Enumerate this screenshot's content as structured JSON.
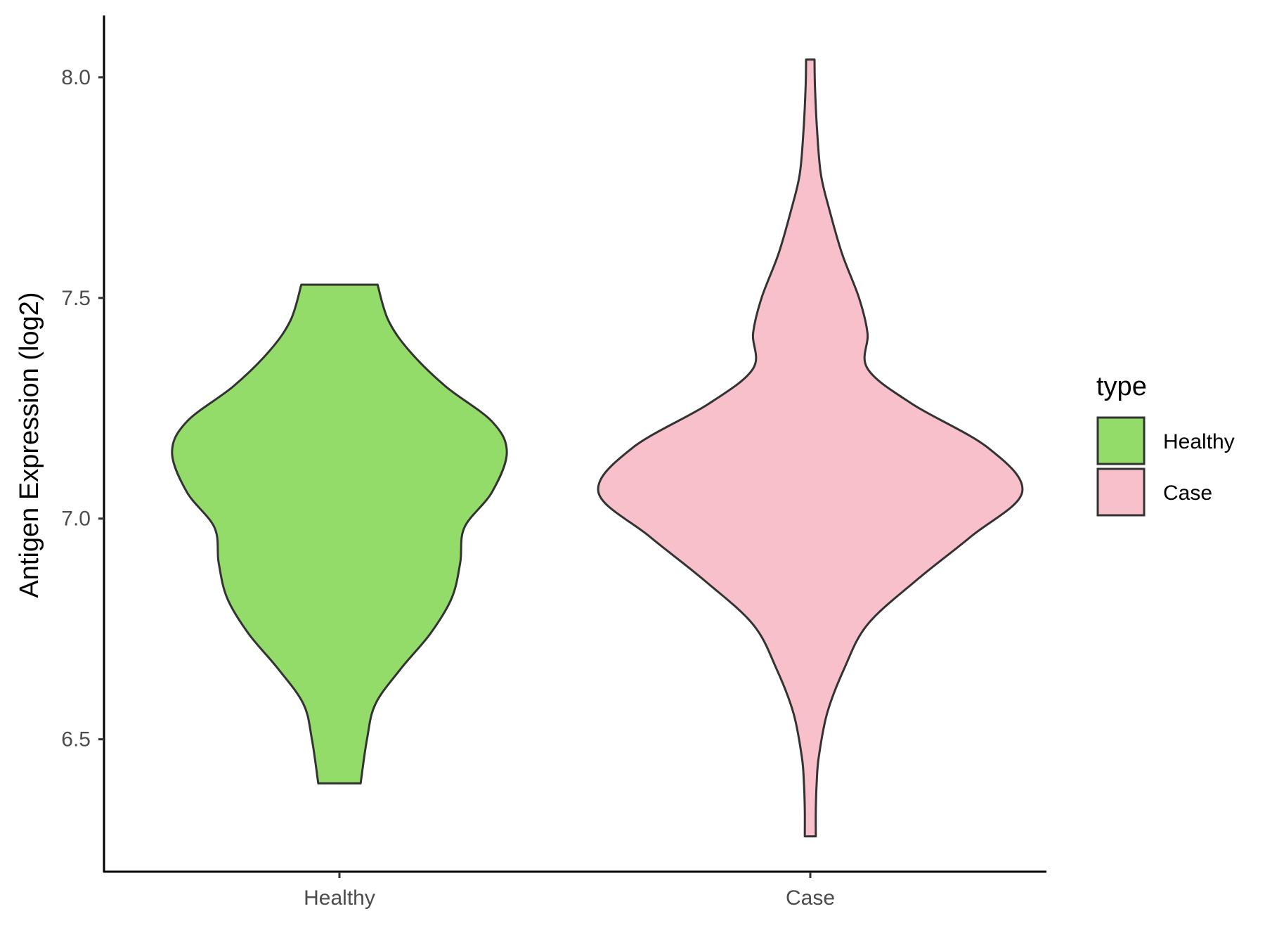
{
  "chart_data": {
    "type": "violin",
    "ylabel": "Antigen Expression (log2)",
    "xlabel": "",
    "categories": [
      "Healthy",
      "Case"
    ],
    "ylim": [
      6.2,
      8.14
    ],
    "yticks": [
      "6.5",
      "7.0",
      "7.5",
      "8.0"
    ],
    "grid": false,
    "legend": {
      "title": "type",
      "position": "right",
      "entries": [
        "Healthy",
        "Case"
      ]
    },
    "series": [
      {
        "category": "Healthy",
        "color": "#93DC6A",
        "y_min": 6.4,
        "y_max": 7.53,
        "density_profile": [
          [
            6.4,
            0.1
          ],
          [
            6.5,
            0.13
          ],
          [
            6.58,
            0.17
          ],
          [
            6.66,
            0.29
          ],
          [
            6.74,
            0.43
          ],
          [
            6.82,
            0.53
          ],
          [
            6.9,
            0.57
          ],
          [
            6.98,
            0.59
          ],
          [
            7.06,
            0.72
          ],
          [
            7.15,
            0.79
          ],
          [
            7.22,
            0.72
          ],
          [
            7.3,
            0.5
          ],
          [
            7.38,
            0.33
          ],
          [
            7.45,
            0.23
          ],
          [
            7.53,
            0.18
          ]
        ]
      },
      {
        "category": "Case",
        "color": "#F7C0CB",
        "y_min": 6.28,
        "y_max": 8.04,
        "density_profile": [
          [
            6.28,
            0.026
          ],
          [
            6.34,
            0.026
          ],
          [
            6.4,
            0.03
          ],
          [
            6.46,
            0.04
          ],
          [
            6.56,
            0.08
          ],
          [
            6.66,
            0.16
          ],
          [
            6.76,
            0.27
          ],
          [
            6.86,
            0.5
          ],
          [
            6.96,
            0.76
          ],
          [
            7.06,
            1.0
          ],
          [
            7.16,
            0.84
          ],
          [
            7.26,
            0.48
          ],
          [
            7.34,
            0.27
          ],
          [
            7.42,
            0.27
          ],
          [
            7.5,
            0.23
          ],
          [
            7.6,
            0.15
          ],
          [
            7.7,
            0.09
          ],
          [
            7.78,
            0.05
          ],
          [
            7.88,
            0.032
          ],
          [
            7.98,
            0.022
          ],
          [
            8.04,
            0.02
          ]
        ]
      }
    ]
  }
}
